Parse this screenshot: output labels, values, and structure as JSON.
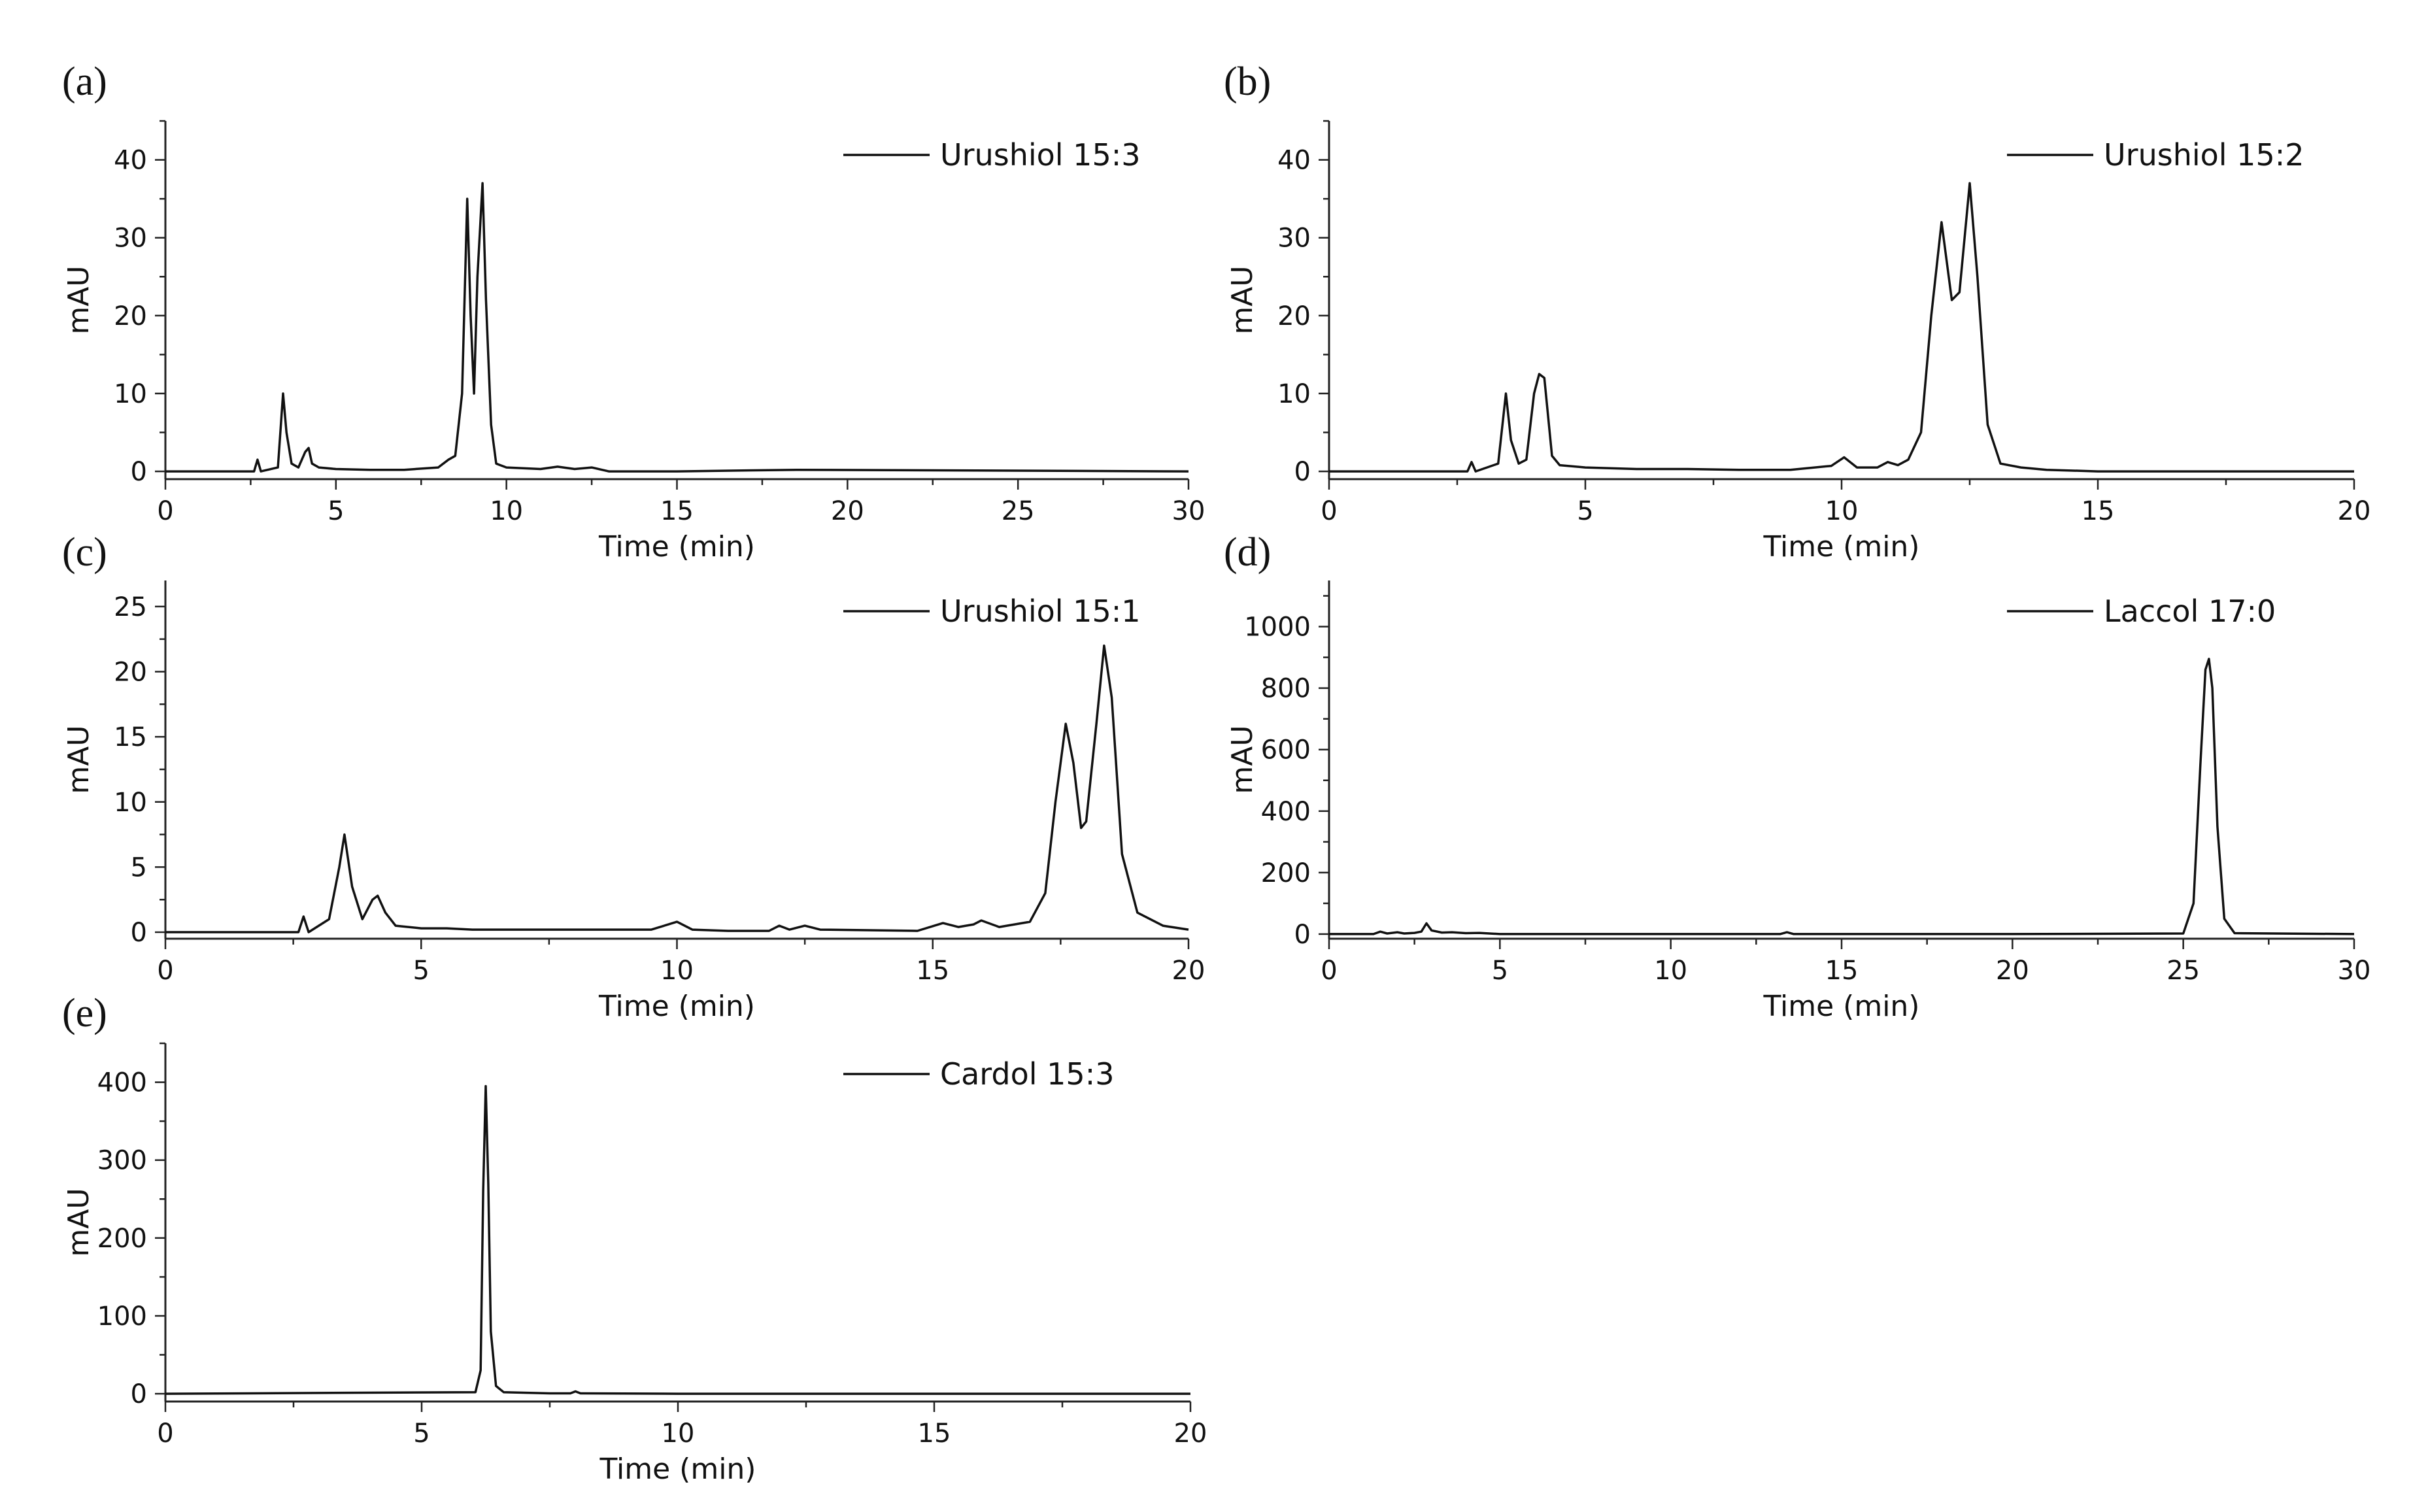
{
  "chart_data": [
    {
      "panel": "(a)",
      "type": "line",
      "xlabel": "Time (min)",
      "ylabel": "mAU",
      "xlim": [
        0,
        30
      ],
      "ylim": [
        -1,
        45
      ],
      "xticks": [
        0,
        5,
        10,
        15,
        20,
        25,
        30
      ],
      "yticks": [
        0,
        10,
        20,
        30,
        40
      ],
      "legend_position": "top-right",
      "series": [
        {
          "name": "Urushiol 15:3",
          "x": [
            0,
            2.6,
            2.7,
            2.8,
            3.3,
            3.45,
            3.55,
            3.7,
            3.9,
            4.1,
            4.2,
            4.3,
            4.5,
            5,
            6,
            7,
            8,
            8.3,
            8.5,
            8.7,
            8.85,
            8.95,
            9.05,
            9.15,
            9.3,
            9.4,
            9.55,
            9.7,
            10,
            11,
            11.5,
            12,
            12.5,
            13,
            15,
            18.5,
            30
          ],
          "y": [
            0,
            0,
            1.5,
            0,
            0.5,
            10,
            5,
            1,
            0.5,
            2.5,
            3,
            1,
            0.5,
            0.3,
            0.2,
            0.2,
            0.5,
            1.5,
            2,
            10,
            35,
            20,
            10,
            25,
            37,
            22,
            6,
            1,
            0.5,
            0.3,
            0.6,
            0.3,
            0.5,
            0,
            0,
            0.2,
            0
          ]
        }
      ]
    },
    {
      "panel": "(b)",
      "type": "line",
      "xlabel": "Time (min)",
      "ylabel": "mAU",
      "xlim": [
        0,
        20
      ],
      "ylim": [
        -1,
        45
      ],
      "xticks": [
        0,
        5,
        10,
        15,
        20
      ],
      "yticks": [
        0,
        10,
        20,
        30,
        40
      ],
      "legend_position": "top-right",
      "series": [
        {
          "name": "Urushiol 15:2",
          "x": [
            0,
            2.7,
            2.78,
            2.86,
            3.3,
            3.45,
            3.55,
            3.7,
            3.85,
            4.0,
            4.1,
            4.2,
            4.35,
            4.5,
            5,
            6,
            7,
            8,
            9,
            9.8,
            10.05,
            10.3,
            10.7,
            10.9,
            11.1,
            11.3,
            11.55,
            11.75,
            11.95,
            12.15,
            12.3,
            12.5,
            12.65,
            12.85,
            13.1,
            13.5,
            14,
            15,
            20
          ],
          "y": [
            0,
            0,
            1.2,
            0,
            1,
            10,
            4,
            1,
            1.5,
            10,
            12.5,
            12,
            2,
            0.8,
            0.5,
            0.3,
            0.3,
            0.2,
            0.2,
            0.7,
            1.8,
            0.5,
            0.5,
            1.2,
            0.8,
            1.5,
            5,
            20,
            32,
            22,
            23,
            37,
            25,
            6,
            1,
            0.5,
            0.2,
            0,
            0
          ]
        }
      ]
    },
    {
      "panel": "(c)",
      "type": "line",
      "xlabel": "Time (min)",
      "ylabel": "mAU",
      "xlim": [
        0,
        20
      ],
      "ylim": [
        -0.5,
        27
      ],
      "xticks": [
        0,
        5,
        10,
        15,
        20
      ],
      "yticks": [
        0,
        5,
        10,
        15,
        20,
        25
      ],
      "legend_position": "top-right",
      "series": [
        {
          "name": "Urushiol 15:1",
          "x": [
            0,
            2.6,
            2.7,
            2.8,
            3.2,
            3.4,
            3.5,
            3.65,
            3.85,
            4.05,
            4.15,
            4.3,
            4.5,
            5,
            5.5,
            6,
            7.5,
            9.5,
            10,
            10.3,
            11,
            11.8,
            12.0,
            12.2,
            12.5,
            12.8,
            14.7,
            15.2,
            15.5,
            15.8,
            15.95,
            16.3,
            16.9,
            17.2,
            17.4,
            17.6,
            17.75,
            17.9,
            18.0,
            18.2,
            18.35,
            18.5,
            18.7,
            19.0,
            19.5,
            20
          ],
          "y": [
            0,
            0,
            1.2,
            0,
            1,
            5,
            7.5,
            3.5,
            1,
            2.5,
            2.8,
            1.5,
            0.5,
            0.3,
            0.3,
            0.2,
            0.2,
            0.2,
            0.8,
            0.2,
            0.1,
            0.1,
            0.5,
            0.2,
            0.5,
            0.2,
            0.1,
            0.7,
            0.4,
            0.6,
            0.9,
            0.4,
            0.8,
            3,
            10,
            16,
            13,
            8,
            8.5,
            16,
            22,
            18,
            6,
            1.5,
            0.5,
            0.2
          ]
        }
      ]
    },
    {
      "panel": "(d)",
      "type": "line",
      "xlabel": "Time (min)",
      "ylabel": "mAU",
      "xlim": [
        0,
        30
      ],
      "ylim": [
        -15,
        1150
      ],
      "xticks": [
        0,
        5,
        10,
        15,
        20,
        25,
        30
      ],
      "yticks": [
        0,
        200,
        400,
        600,
        800,
        1000
      ],
      "legend_position": "top-right",
      "series": [
        {
          "name": "Laccol 17:0",
          "x": [
            0,
            1.3,
            1.5,
            1.7,
            2.0,
            2.2,
            2.5,
            2.7,
            2.85,
            3.0,
            3.3,
            3.6,
            4.0,
            4.4,
            5,
            10,
            13.2,
            13.4,
            13.6,
            20,
            25,
            25.3,
            25.5,
            25.65,
            25.75,
            25.85,
            26.0,
            26.2,
            26.5,
            30
          ],
          "y": [
            0,
            0,
            8,
            2,
            6,
            2,
            4,
            8,
            35,
            12,
            5,
            6,
            3,
            4,
            0,
            0,
            0,
            6,
            0,
            0,
            2,
            100,
            550,
            860,
            895,
            800,
            350,
            50,
            3,
            0
          ]
        }
      ]
    },
    {
      "panel": "(e)",
      "type": "line",
      "xlabel": "Time (min)",
      "ylabel": "mAU",
      "xlim": [
        0,
        20
      ],
      "ylim": [
        -10,
        450
      ],
      "xticks": [
        0,
        5,
        10,
        15,
        20
      ],
      "yticks": [
        0,
        100,
        200,
        300,
        400
      ],
      "legend_position": "top",
      "series": [
        {
          "name": "Cardol 15:3",
          "x": [
            0,
            6.05,
            6.15,
            6.2,
            6.25,
            6.3,
            6.35,
            6.45,
            6.6,
            7.5,
            7.9,
            8.0,
            8.1,
            10,
            20
          ],
          "y": [
            0,
            2,
            30,
            260,
            395,
            270,
            80,
            10,
            2,
            0.5,
            0.5,
            3,
            0.5,
            0,
            0
          ]
        }
      ]
    }
  ]
}
